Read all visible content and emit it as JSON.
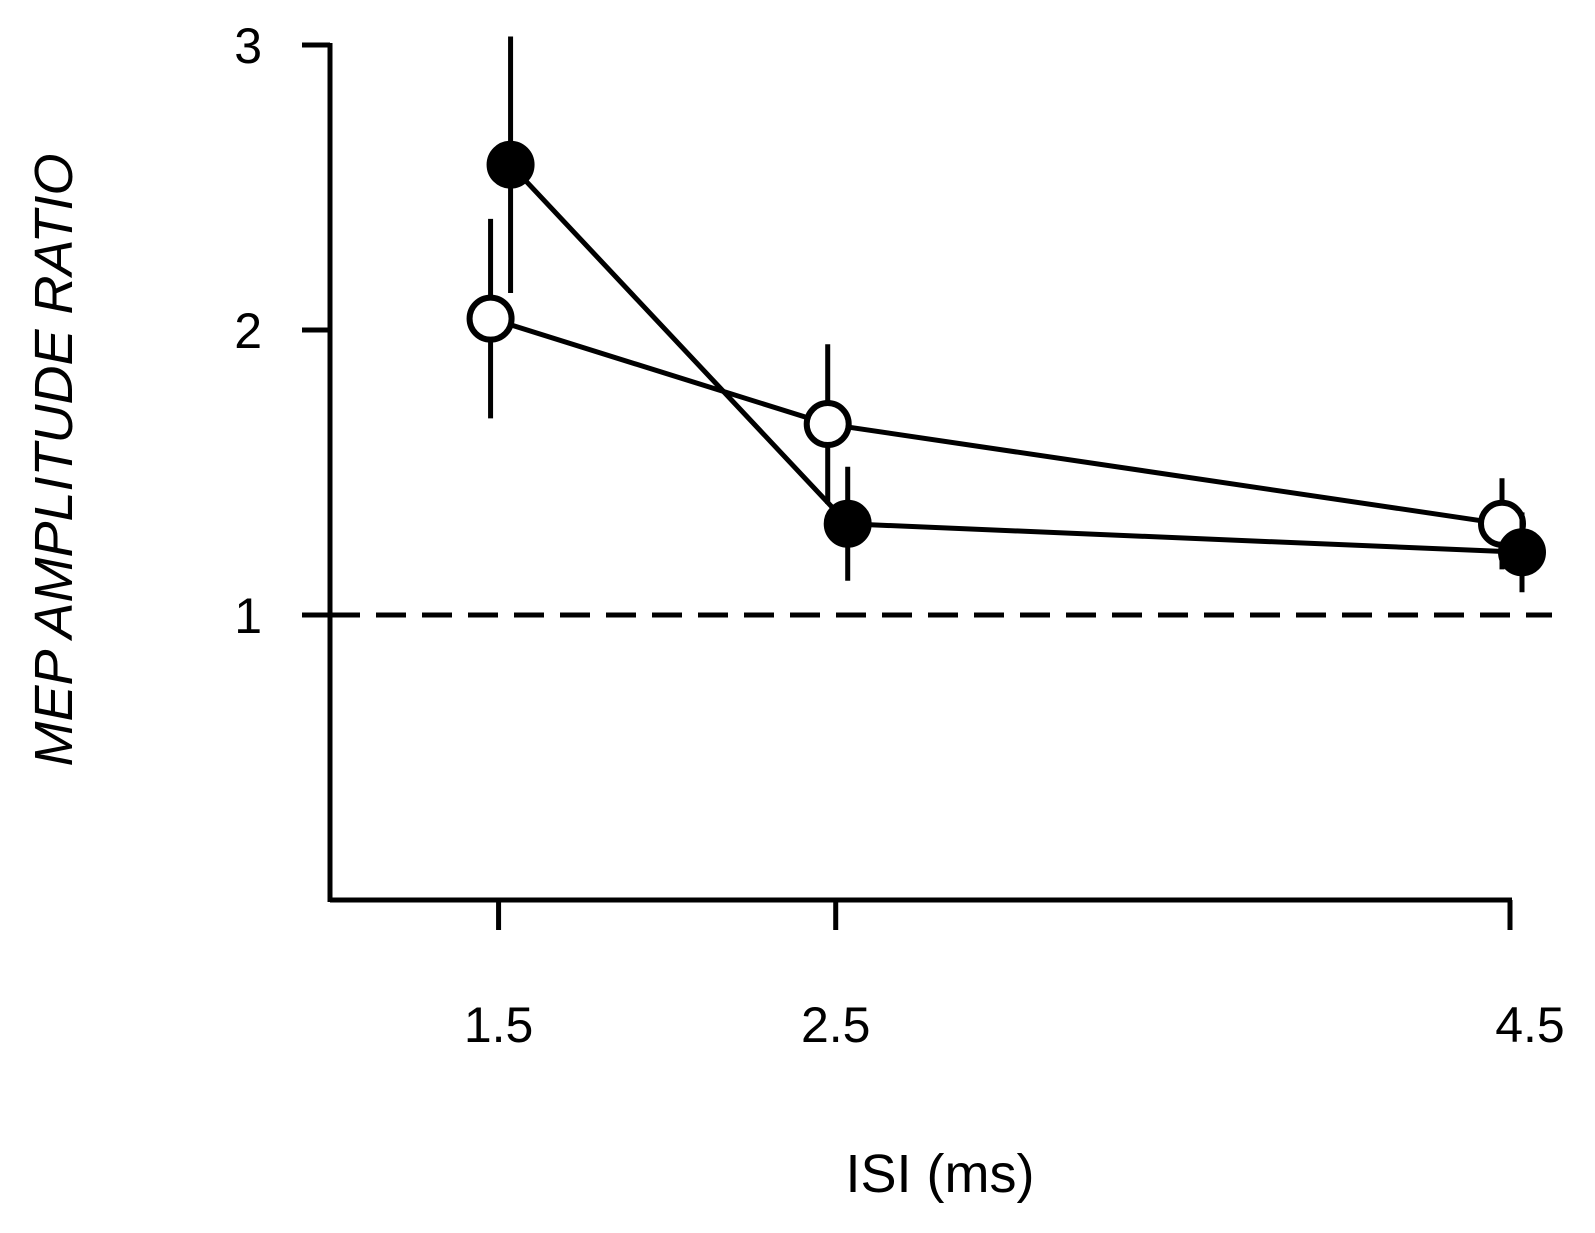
{
  "chart_data": {
    "type": "line",
    "title": "",
    "xlabel": "ISI  (ms)",
    "ylabel": "MEP  AMPLITUDE  RATIO",
    "x_ticks": [
      1.5,
      2.5,
      4.5
    ],
    "x_tick_labels": [
      "1.5",
      "2.5",
      "4.5"
    ],
    "y_ticks": [
      1,
      2,
      3
    ],
    "y_tick_labels": [
      "1",
      "2",
      "3"
    ],
    "ylim": [
      0,
      3
    ],
    "xlim": [
      1,
      4.5
    ],
    "grid": false,
    "reference_line": {
      "y": 1,
      "style": "dashed"
    },
    "series": [
      {
        "marker": "filled-circle",
        "color": "#000000",
        "x": [
          1.5,
          2.5,
          4.5
        ],
        "y": [
          2.58,
          1.32,
          1.22
        ],
        "error_bars": [
          0.45,
          0.2,
          0.14
        ]
      },
      {
        "marker": "open-circle",
        "color": "#000000",
        "x": [
          1.5,
          2.5,
          4.5
        ],
        "y": [
          2.04,
          1.67,
          1.32
        ],
        "error_bars": [
          0.35,
          0.28,
          0.16
        ]
      }
    ]
  }
}
